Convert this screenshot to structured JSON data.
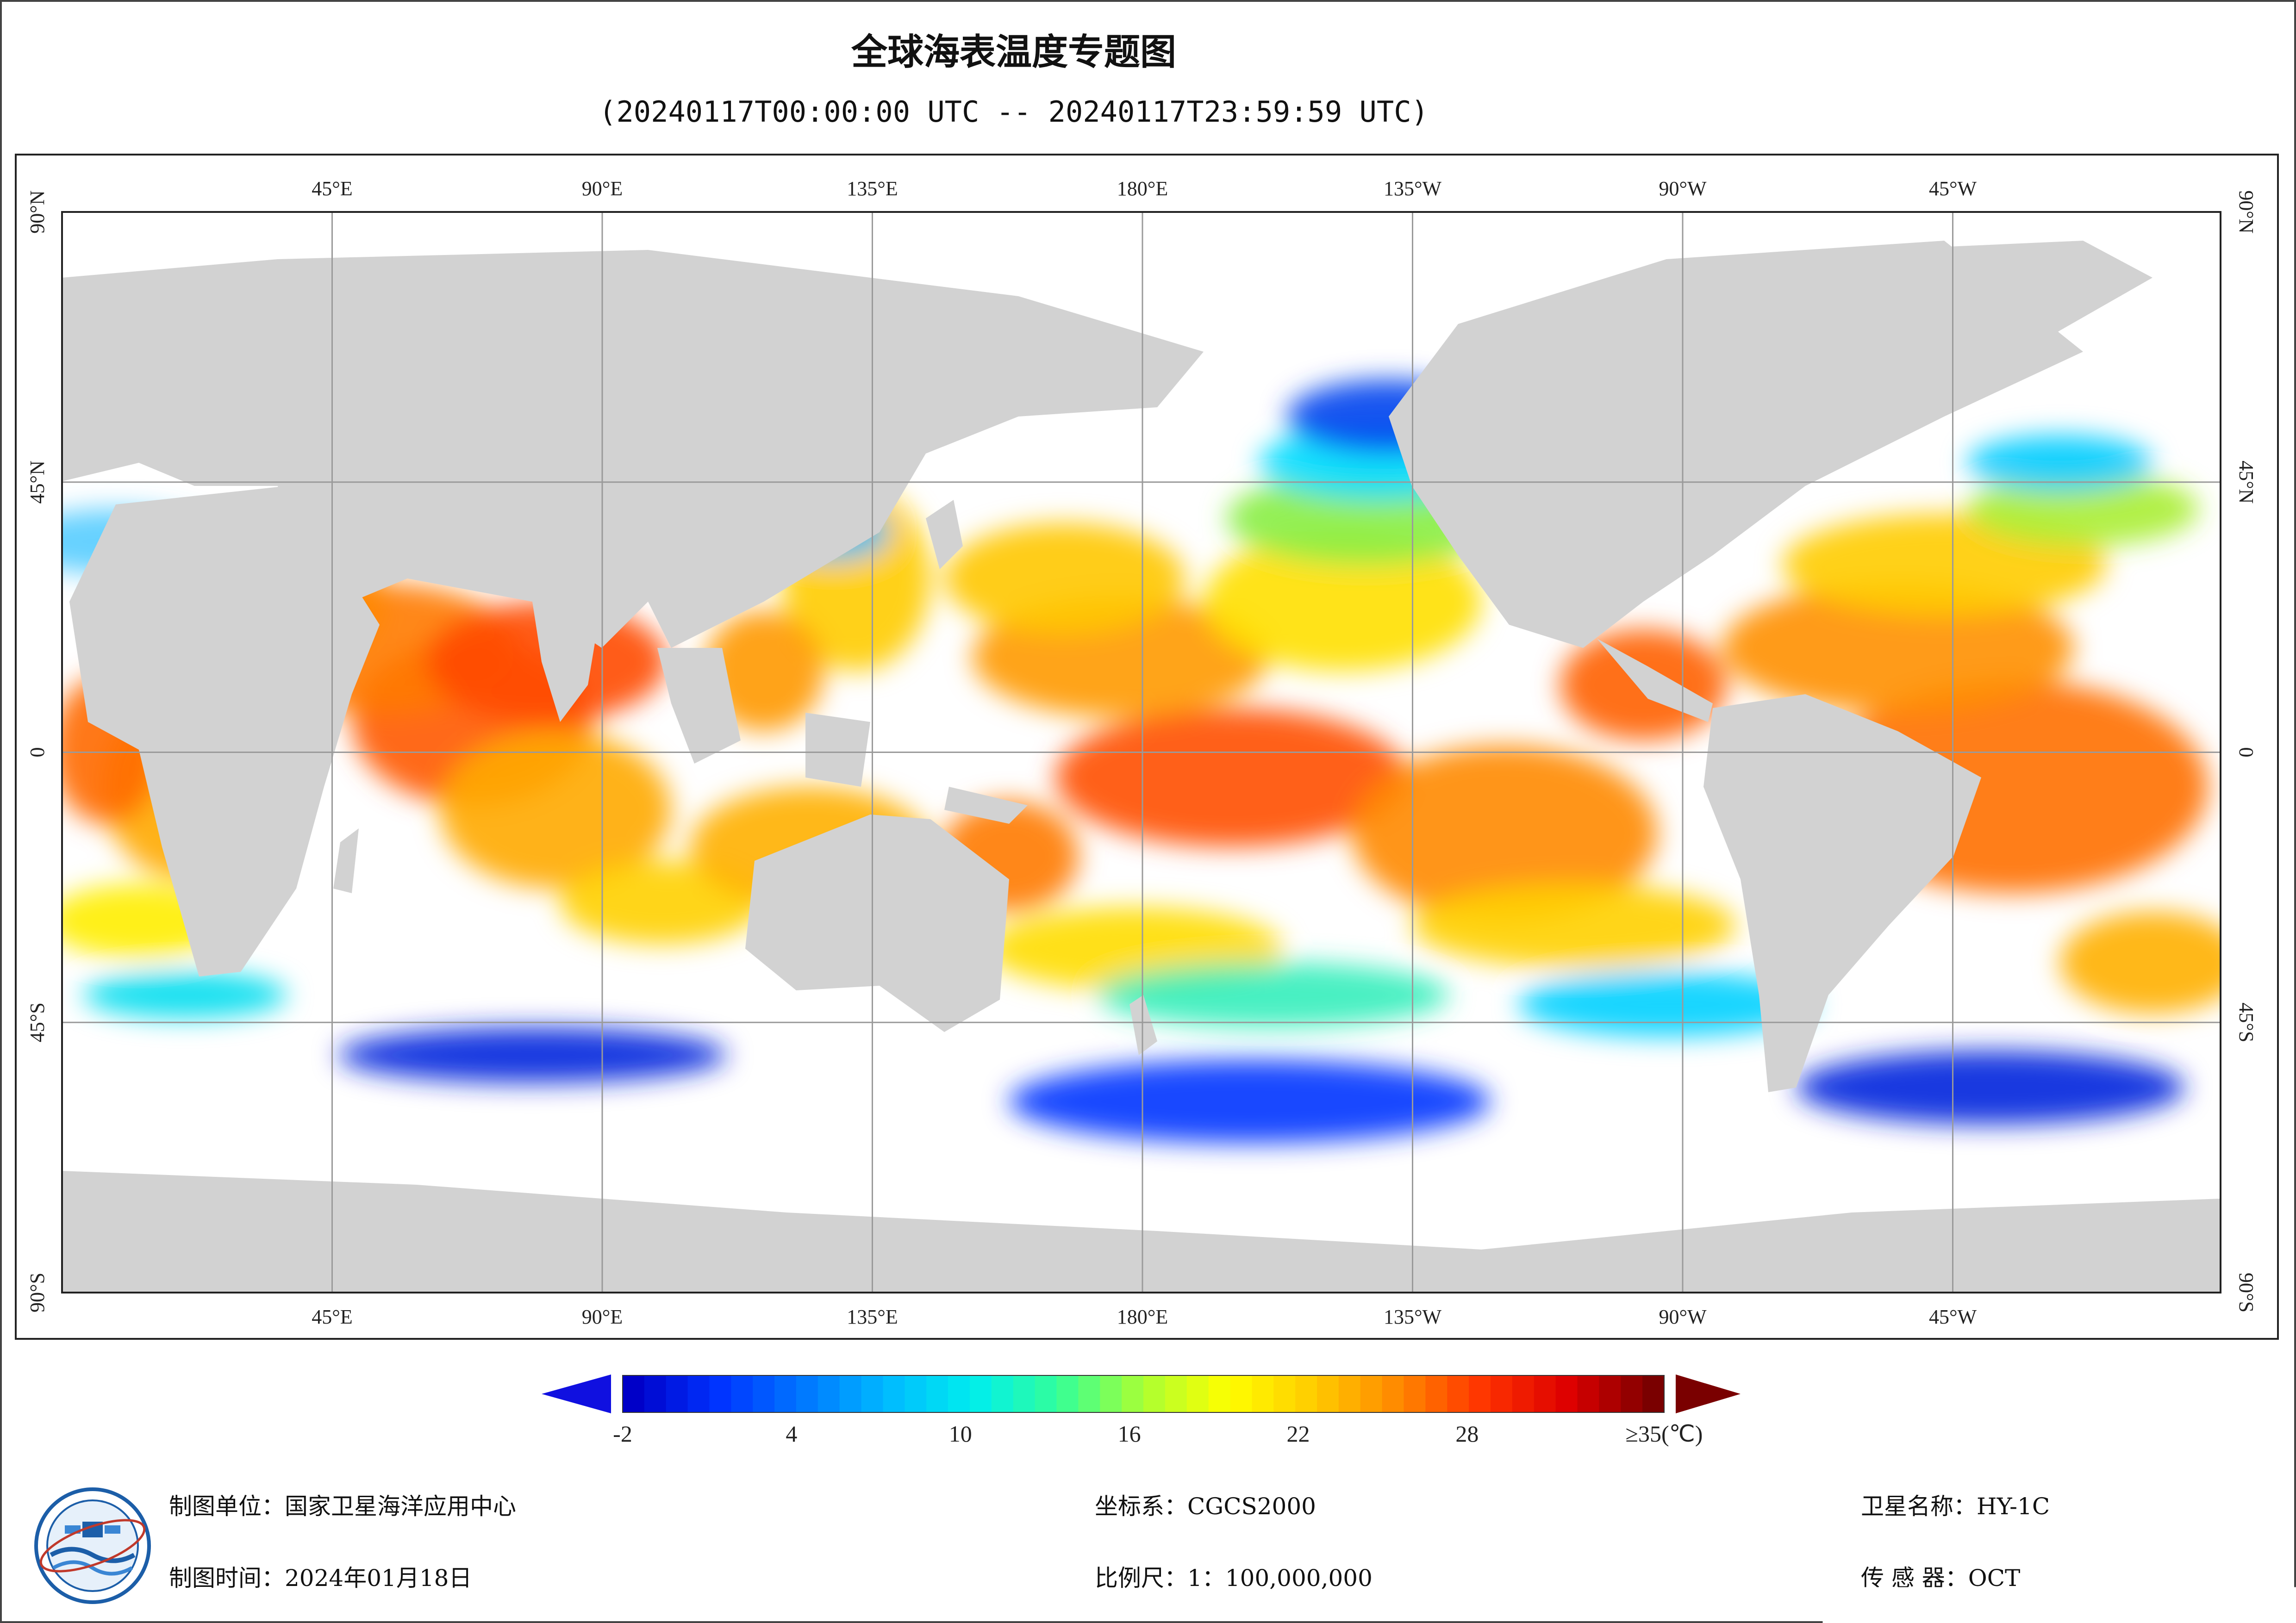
{
  "title": "全球海表温度专题图",
  "subtitle": "(20240117T00:00:00 UTC -- 20240117T23:59:59 UTC)",
  "map": {
    "top_lon_labels": [
      "45°E",
      "90°E",
      "135°E",
      "180°E",
      "135°W",
      "90°W",
      "45°W"
    ],
    "bottom_lon_labels": [
      "45°E",
      "90°E",
      "135°E",
      "180°E",
      "135°W",
      "90°W",
      "45°W"
    ],
    "lat_labels": [
      "90°N",
      "45°N",
      "0",
      "45°S",
      "90°S"
    ],
    "colors": {
      "land": "#d2d2d2",
      "cloud": "#ffffff",
      "grid": "#9a9a9a"
    }
  },
  "colorbar": {
    "tick_labels": [
      "-2",
      "4",
      "10",
      "16",
      "22",
      "28",
      "≥35(℃)"
    ],
    "tick_values": [
      -2,
      4,
      10,
      16,
      22,
      28,
      35
    ],
    "range": [
      -2,
      35
    ],
    "colors": [
      "#0000c8",
      "#0033ff",
      "#0077ff",
      "#00bbff",
      "#00eeee",
      "#33ff99",
      "#aaff33",
      "#ffff00",
      "#ffcc00",
      "#ff8800",
      "#ff3300",
      "#dd0000",
      "#7a0000"
    ]
  },
  "footer": {
    "unit": "制图单位：国家卫星海洋应用中心",
    "date": "制图时间：2024年01月18日",
    "crs": "坐标系：CGCS2000",
    "scale": "比例尺：1：100,000,000",
    "satellite": "卫星名称：HY-1C",
    "sensor": "传  感  器：OCT"
  }
}
